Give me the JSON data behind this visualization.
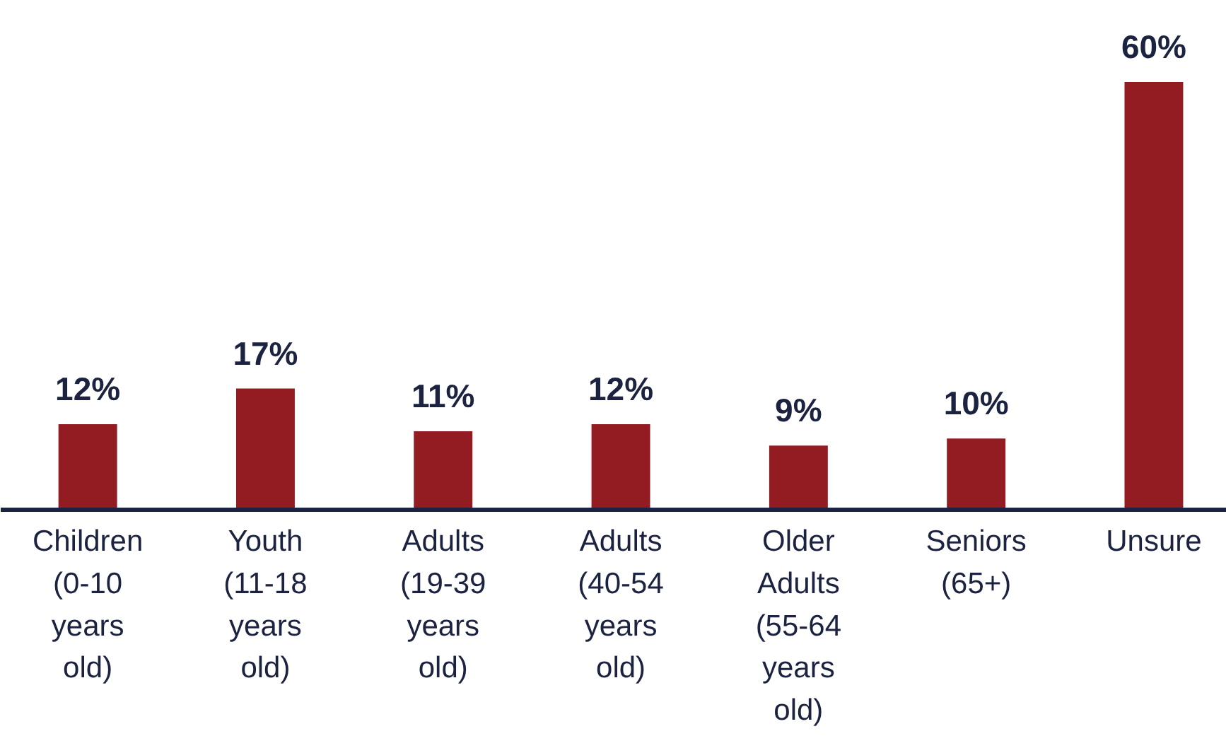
{
  "chart_data": {
    "type": "bar",
    "categories": [
      "Children\n(0-10\nyears\nold)",
      "Youth\n(11-18\nyears\nold)",
      "Adults\n(19-39\nyears\nold)",
      "Adults\n(40-54\nyears\nold)",
      "Older\nAdults\n(55-64\nyears\nold)",
      "Seniors\n(65+)",
      "Unsure"
    ],
    "values": [
      12,
      17,
      11,
      12,
      9,
      10,
      60
    ],
    "value_labels": [
      "12%",
      "17%",
      "11%",
      "12%",
      "9%",
      "10%",
      "60%"
    ],
    "color": "#921c21"
  }
}
